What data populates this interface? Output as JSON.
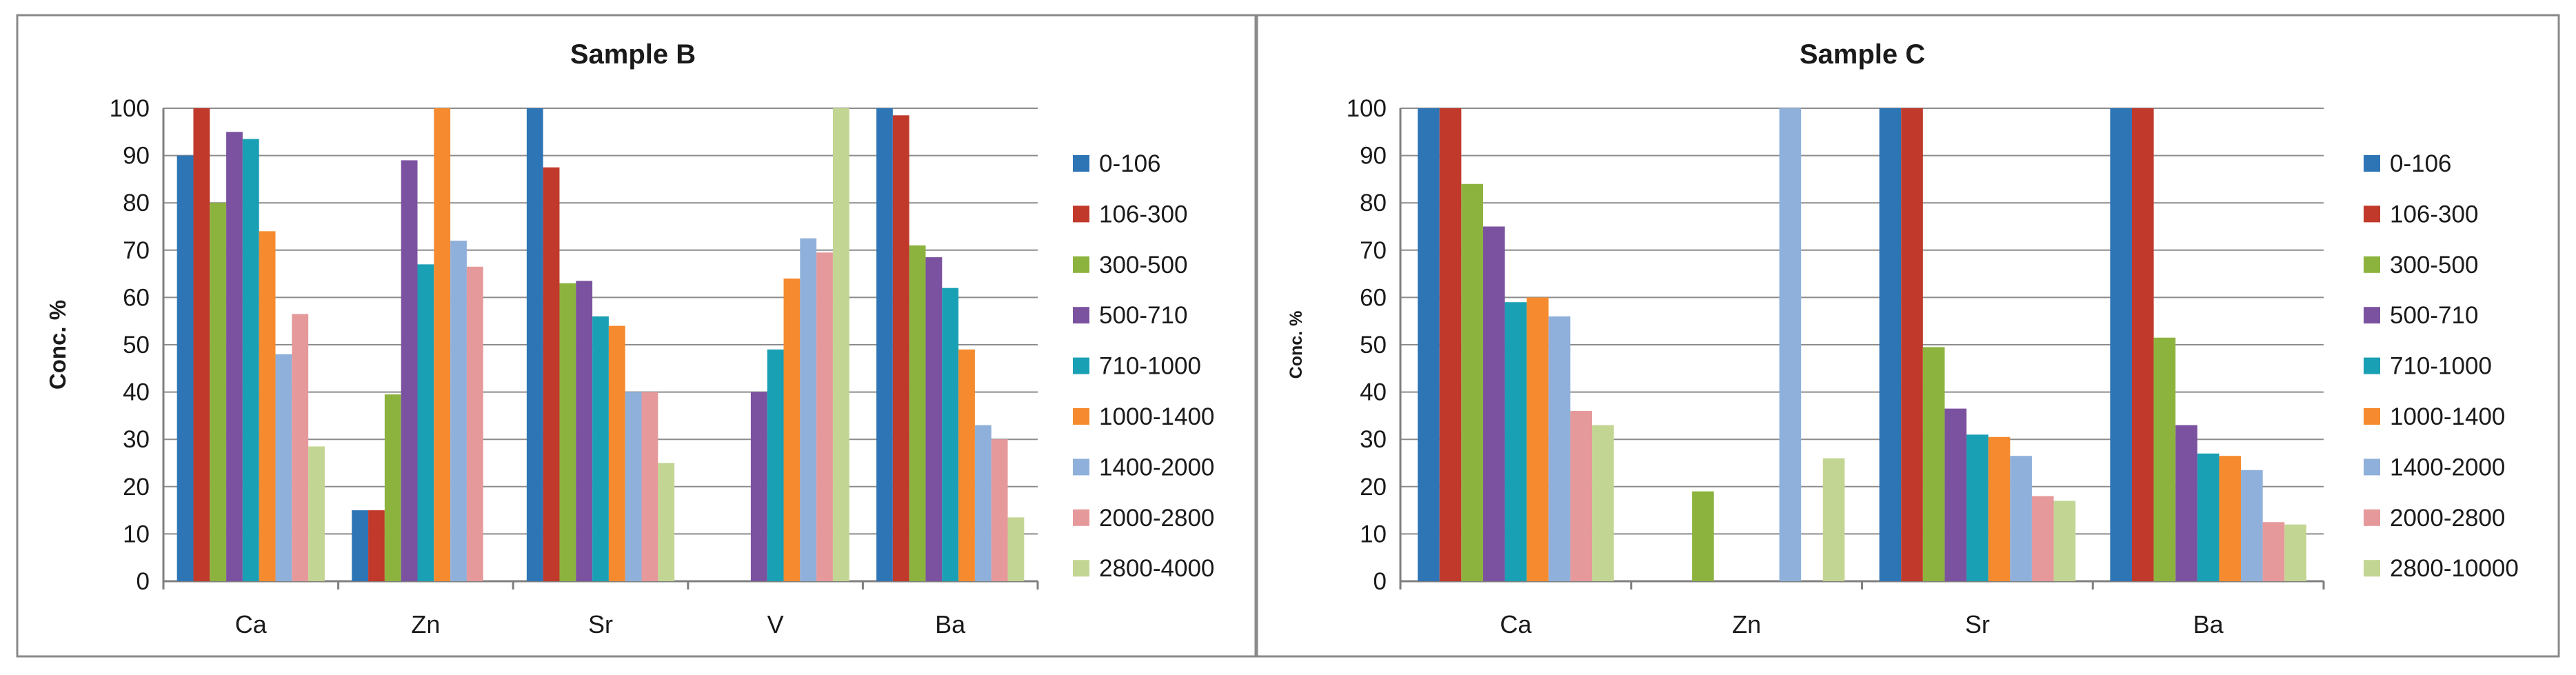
{
  "chart_data": [
    {
      "type": "bar",
      "title": "Sample B",
      "xlabel": "",
      "ylabel": "Conc. %",
      "ylim": [
        0,
        100
      ],
      "yticks": [
        0,
        10,
        20,
        30,
        40,
        50,
        60,
        70,
        80,
        90,
        100
      ],
      "grid": true,
      "legend_position": "right",
      "categories": [
        "Ca",
        "Zn",
        "Sr",
        "V",
        "Ba"
      ],
      "series": [
        {
          "name": "0-106",
          "color": "#2E75B6",
          "values": [
            90,
            15,
            100,
            null,
            100
          ]
        },
        {
          "name": "106-300",
          "color": "#C0392B",
          "values": [
            100,
            15,
            87.5,
            null,
            98.5
          ]
        },
        {
          "name": "300-500",
          "color": "#8DB33F",
          "values": [
            80,
            39.5,
            63,
            null,
            71
          ]
        },
        {
          "name": "500-710",
          "color": "#7B52A0",
          "values": [
            95,
            89,
            63.5,
            40,
            68.5
          ]
        },
        {
          "name": "710-1000",
          "color": "#1AA0B4",
          "values": [
            93.5,
            67,
            56,
            49,
            62
          ]
        },
        {
          "name": "1000-1400",
          "color": "#F58B2E",
          "values": [
            74,
            100,
            54,
            64,
            49
          ]
        },
        {
          "name": "1400-2000",
          "color": "#8FB0DA",
          "values": [
            48,
            72,
            40,
            72.5,
            33
          ]
        },
        {
          "name": "2000-2800",
          "color": "#E6999B",
          "values": [
            56.5,
            66.5,
            40,
            69.5,
            30
          ]
        },
        {
          "name": "2800-4000",
          "color": "#C3D593",
          "values": [
            28.5,
            null,
            25,
            100,
            13.5
          ]
        }
      ]
    },
    {
      "type": "bar",
      "title": "Sample C",
      "xlabel": "",
      "ylabel": "Conc. %",
      "ylim": [
        0,
        100
      ],
      "yticks": [
        0,
        10,
        20,
        30,
        40,
        50,
        60,
        70,
        80,
        90,
        100
      ],
      "grid": true,
      "legend_position": "right",
      "categories": [
        "Ca",
        "Zn",
        "Sr",
        "Ba"
      ],
      "series": [
        {
          "name": "0-106",
          "color": "#2E75B6",
          "values": [
            100,
            null,
            100,
            100
          ]
        },
        {
          "name": "106-300",
          "color": "#C0392B",
          "values": [
            100,
            null,
            100,
            100
          ]
        },
        {
          "name": "300-500",
          "color": "#8DB33F",
          "values": [
            84,
            19,
            49.5,
            51.5
          ]
        },
        {
          "name": "500-710",
          "color": "#7B52A0",
          "values": [
            75,
            null,
            36.5,
            33
          ]
        },
        {
          "name": "710-1000",
          "color": "#1AA0B4",
          "values": [
            59,
            null,
            31,
            27
          ]
        },
        {
          "name": "1000-1400",
          "color": "#F58B2E",
          "values": [
            60,
            null,
            30.5,
            26.5
          ]
        },
        {
          "name": "1400-2000",
          "color": "#8FB0DA",
          "values": [
            56,
            100,
            26.5,
            23.5
          ]
        },
        {
          "name": "2000-2800",
          "color": "#E6999B",
          "values": [
            36,
            null,
            18,
            12.5
          ]
        },
        {
          "name": "2800-10000",
          "color": "#C3D593",
          "values": [
            33,
            26,
            17,
            12
          ]
        }
      ]
    }
  ]
}
